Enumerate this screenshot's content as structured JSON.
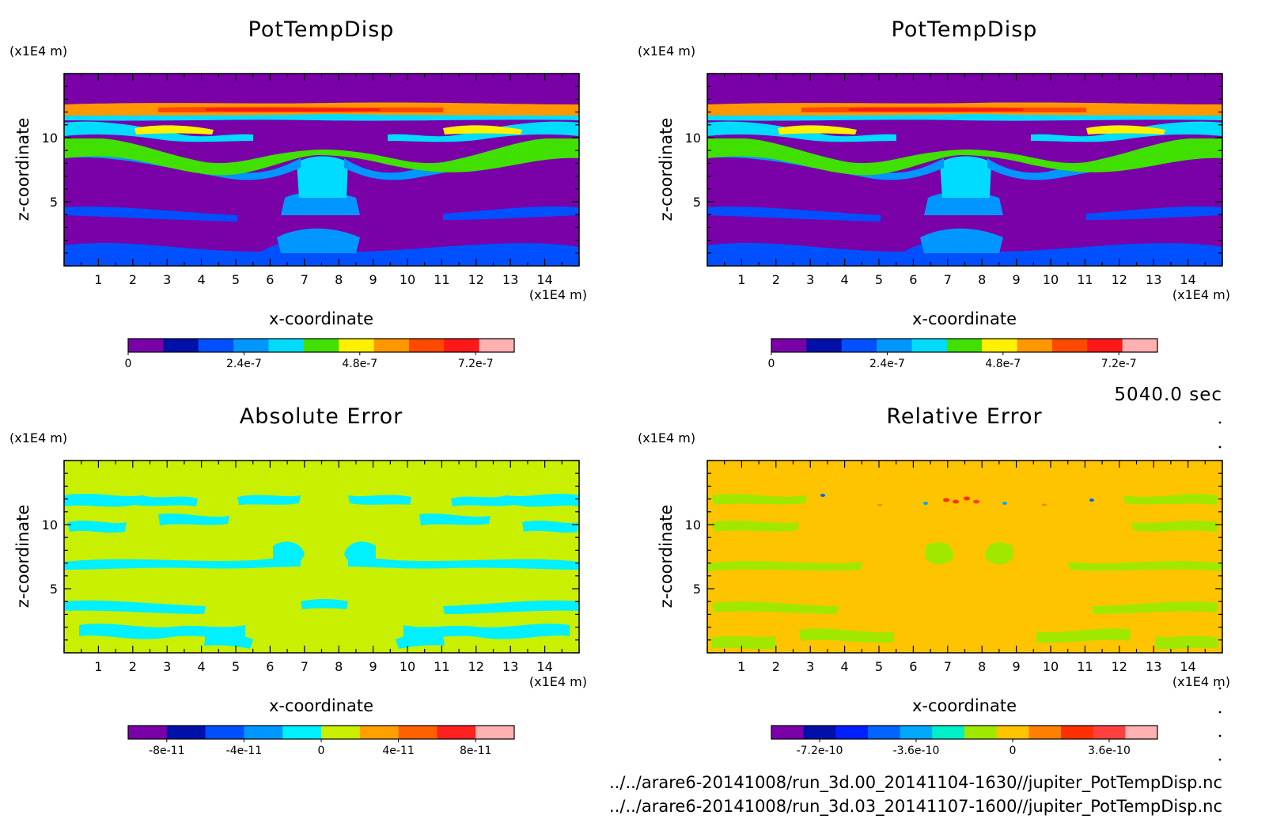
{
  "window": {
    "time_label": "5040.0 sec",
    "files": [
      "../../arare6-20141008/run_3d.00_20141104-1630//jupiter_PotTempDisp.nc",
      "../../arare6-20141008/run_3d.03_20141107-1600//jupiter_PotTempDisp.nc"
    ]
  },
  "chart_data": [
    {
      "type": "heatmap",
      "title": "PotTempDisp",
      "xlabel": "x-coordinate",
      "ylabel": "z-coordinate",
      "x_unit": "(x1E4 m)",
      "y_unit": "(x1E4 m)",
      "xlim": [
        0,
        15
      ],
      "ylim": [
        0,
        15
      ],
      "x_ticks": [
        "1",
        "2",
        "3",
        "4",
        "5",
        "6",
        "7",
        "8",
        "9",
        "10",
        "11",
        "12",
        "13",
        "14"
      ],
      "y_ticks": [
        "5",
        "10"
      ],
      "background_color": "#7a00a8",
      "colorbar": {
        "colors": [
          "#7a00a8",
          "#0010a8",
          "#0050ff",
          "#0096ff",
          "#00dcff",
          "#40e000",
          "#fff000",
          "#ff9800",
          "#ff4800",
          "#ff1818",
          "#ffb0b0"
        ],
        "tick_labels": [
          "0",
          "2.4e-7",
          "4.8e-7",
          "7.2e-7"
        ],
        "tick_values": [
          0,
          2.4e-07,
          4.8e-07,
          7.2e-07
        ],
        "range": [
          0,
          8e-07
        ]
      }
    },
    {
      "type": "heatmap",
      "title": "PotTempDisp",
      "xlabel": "x-coordinate",
      "ylabel": "z-coordinate",
      "x_unit": "(x1E4 m)",
      "y_unit": "(x1E4 m)",
      "xlim": [
        0,
        15
      ],
      "ylim": [
        0,
        15
      ],
      "x_ticks": [
        "1",
        "2",
        "3",
        "4",
        "5",
        "6",
        "7",
        "8",
        "9",
        "10",
        "11",
        "12",
        "13",
        "14"
      ],
      "y_ticks": [
        "5",
        "10"
      ],
      "background_color": "#7a00a8",
      "colorbar": {
        "colors": [
          "#7a00a8",
          "#0010a8",
          "#0050ff",
          "#0096ff",
          "#00dcff",
          "#40e000",
          "#fff000",
          "#ff9800",
          "#ff4800",
          "#ff1818",
          "#ffb0b0"
        ],
        "tick_labels": [
          "0",
          "2.4e-7",
          "4.8e-7",
          "7.2e-7"
        ],
        "tick_values": [
          0,
          2.4e-07,
          4.8e-07,
          7.2e-07
        ],
        "range": [
          0,
          8e-07
        ]
      }
    },
    {
      "type": "heatmap",
      "title": "Absolute Error",
      "xlabel": "x-coordinate",
      "ylabel": "z-coordinate",
      "x_unit": "(x1E4 m)",
      "y_unit": "(x1E4 m)",
      "xlim": [
        0,
        15
      ],
      "ylim": [
        0,
        15
      ],
      "x_ticks": [
        "1",
        "2",
        "3",
        "4",
        "5",
        "6",
        "7",
        "8",
        "9",
        "10",
        "11",
        "12",
        "13",
        "14"
      ],
      "y_ticks": [
        "5",
        "10"
      ],
      "background_color": "#c8f000",
      "colorbar": {
        "colors": [
          "#7a00a8",
          "#0010a8",
          "#0050ff",
          "#0096ff",
          "#00f0ff",
          "#c8f000",
          "#ffa000",
          "#ff6000",
          "#ff2020",
          "#ffb0b0"
        ],
        "tick_labels": [
          "-8e-11",
          "-4e-11",
          "0",
          "4e-11",
          "8e-11"
        ],
        "tick_values": [
          -8e-11,
          -4e-11,
          0,
          4e-11,
          8e-11
        ],
        "range": [
          -1e-10,
          1e-10
        ]
      }
    },
    {
      "type": "heatmap",
      "title": "Relative Error",
      "xlabel": "x-coordinate",
      "ylabel": "z-coordinate",
      "x_unit": "(x1E4 m)",
      "y_unit": "(x1E4 m)",
      "xlim": [
        0,
        15
      ],
      "ylim": [
        0,
        15
      ],
      "x_ticks": [
        "1",
        "2",
        "3",
        "4",
        "5",
        "6",
        "7",
        "8",
        "9",
        "10",
        "11",
        "12",
        "13",
        "14"
      ],
      "y_ticks": [
        "5",
        "10"
      ],
      "background_color": "#ffc400",
      "colorbar": {
        "colors": [
          "#7a00a8",
          "#0010a8",
          "#0020ff",
          "#0064ff",
          "#00a8ff",
          "#00f0c8",
          "#a0e800",
          "#ffc400",
          "#ff8000",
          "#ff3000",
          "#ff4040",
          "#ffb0b0"
        ],
        "tick_labels": [
          "-7.2e-10",
          "-3.6e-10",
          "0",
          "3.6e-10"
        ],
        "tick_values": [
          -7.2e-10,
          -3.6e-10,
          0,
          3.6e-10
        ],
        "range": [
          -9e-10,
          5.4e-10
        ]
      }
    }
  ]
}
